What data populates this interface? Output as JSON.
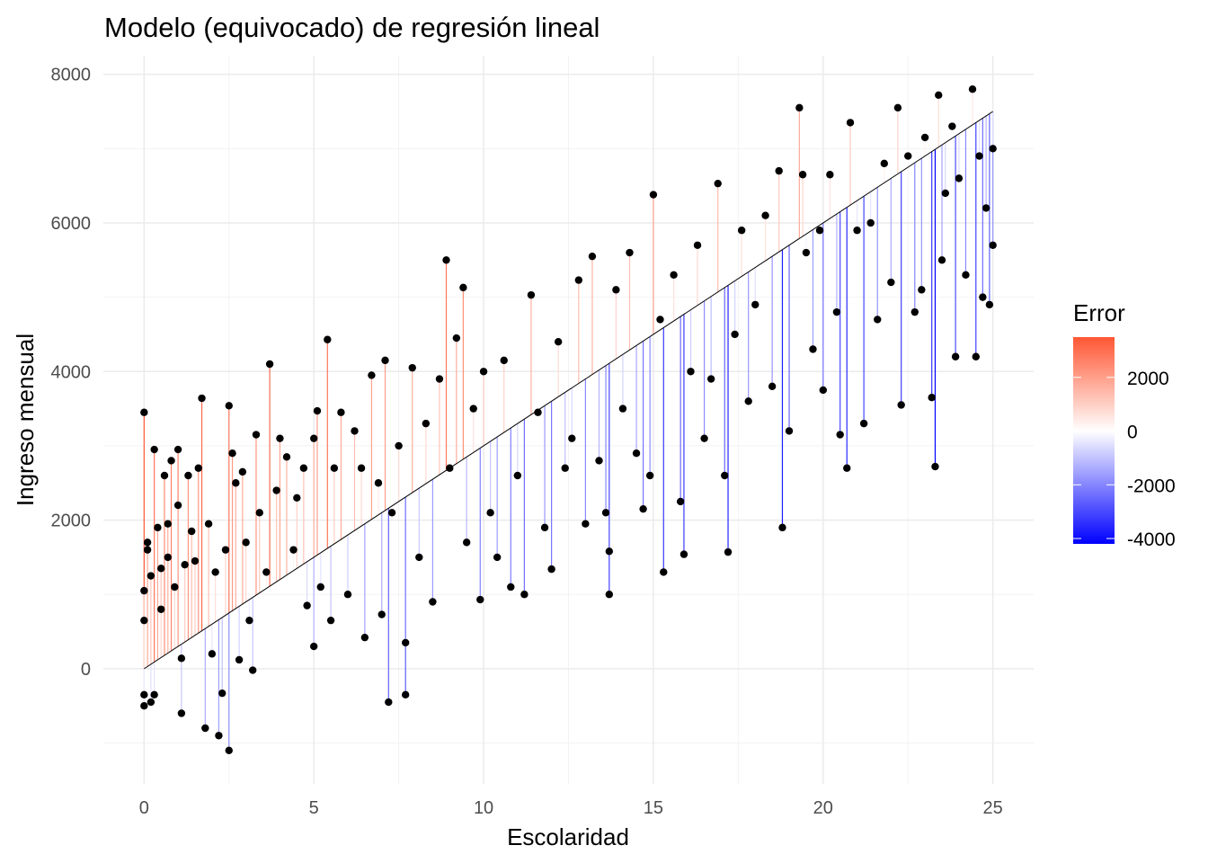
{
  "chart_data": {
    "type": "scatter",
    "title": "Modelo (equivocado) de regresión lineal",
    "xlabel": "Escolaridad",
    "ylabel": "Ingreso mensual",
    "xlim": [
      -1.2,
      26.2
    ],
    "ylim": [
      -1550,
      8250
    ],
    "x_ticks": [
      0,
      5,
      10,
      15,
      20,
      25
    ],
    "y_ticks": [
      0,
      2000,
      4000,
      6000,
      8000
    ],
    "grid": true,
    "fit_line": {
      "intercept": 0,
      "slope": 300,
      "x_range": [
        0,
        25
      ]
    },
    "legend": {
      "title": "Error",
      "placement": "right",
      "ticks": [
        2000,
        0,
        -2000,
        -4000
      ],
      "range": [
        -4200,
        3500
      ],
      "colors": {
        "low": "#0000FF",
        "mid": "#FFFFFF",
        "high": "#FF5733"
      }
    },
    "point_color": "#000000",
    "points": [
      [
        0,
        3450
      ],
      [
        0,
        1050
      ],
      [
        0,
        650
      ],
      [
        0,
        -500
      ],
      [
        0,
        -350
      ],
      [
        0.1,
        1700
      ],
      [
        0.1,
        1600
      ],
      [
        0.2,
        -450
      ],
      [
        0.2,
        1250
      ],
      [
        0.3,
        2950
      ],
      [
        0.3,
        -350
      ],
      [
        0.4,
        1900
      ],
      [
        0.5,
        1350
      ],
      [
        0.5,
        800
      ],
      [
        0.6,
        2600
      ],
      [
        0.7,
        1950
      ],
      [
        0.7,
        1500
      ],
      [
        0.8,
        2800
      ],
      [
        0.9,
        1100
      ],
      [
        1.0,
        2950
      ],
      [
        1.0,
        2200
      ],
      [
        1.1,
        140
      ],
      [
        1.1,
        -600
      ],
      [
        1.2,
        1400
      ],
      [
        1.3,
        2600
      ],
      [
        1.4,
        1850
      ],
      [
        1.5,
        1450
      ],
      [
        1.6,
        2700
      ],
      [
        1.7,
        3640
      ],
      [
        1.8,
        -800
      ],
      [
        1.9,
        1950
      ],
      [
        2.0,
        200
      ],
      [
        2.1,
        1300
      ],
      [
        2.2,
        -900
      ],
      [
        2.3,
        -330
      ],
      [
        2.4,
        1600
      ],
      [
        2.5,
        3540
      ],
      [
        2.5,
        -1100
      ],
      [
        2.6,
        2900
      ],
      [
        2.7,
        2500
      ],
      [
        2.8,
        120
      ],
      [
        2.9,
        2650
      ],
      [
        3.0,
        1700
      ],
      [
        3.1,
        650
      ],
      [
        3.2,
        -20
      ],
      [
        3.3,
        3150
      ],
      [
        3.4,
        2100
      ],
      [
        3.6,
        1300
      ],
      [
        3.7,
        4100
      ],
      [
        3.9,
        2400
      ],
      [
        4.0,
        3100
      ],
      [
        4.2,
        2850
      ],
      [
        4.4,
        1600
      ],
      [
        4.5,
        2300
      ],
      [
        4.7,
        2700
      ],
      [
        4.8,
        850
      ],
      [
        5.0,
        300
      ],
      [
        5.0,
        3100
      ],
      [
        5.1,
        3470
      ],
      [
        5.2,
        1100
      ],
      [
        5.4,
        4430
      ],
      [
        5.5,
        650
      ],
      [
        5.6,
        2700
      ],
      [
        5.8,
        3450
      ],
      [
        6.0,
        1000
      ],
      [
        6.2,
        3200
      ],
      [
        6.4,
        2700
      ],
      [
        6.5,
        420
      ],
      [
        6.7,
        3950
      ],
      [
        6.9,
        2500
      ],
      [
        7.0,
        730
      ],
      [
        7.1,
        4150
      ],
      [
        7.2,
        -450
      ],
      [
        7.3,
        2100
      ],
      [
        7.5,
        3000
      ],
      [
        7.7,
        -350
      ],
      [
        7.7,
        350
      ],
      [
        7.9,
        4050
      ],
      [
        8.1,
        1500
      ],
      [
        8.3,
        3300
      ],
      [
        8.5,
        900
      ],
      [
        8.7,
        3900
      ],
      [
        8.9,
        5500
      ],
      [
        9.0,
        2700
      ],
      [
        9.2,
        4450
      ],
      [
        9.4,
        5130
      ],
      [
        9.5,
        1700
      ],
      [
        9.7,
        3500
      ],
      [
        9.9,
        930
      ],
      [
        10.0,
        4000
      ],
      [
        10.2,
        2100
      ],
      [
        10.4,
        1500
      ],
      [
        10.6,
        4150
      ],
      [
        10.8,
        1100
      ],
      [
        11.0,
        2600
      ],
      [
        11.2,
        1000
      ],
      [
        11.4,
        5030
      ],
      [
        11.6,
        3450
      ],
      [
        11.8,
        1900
      ],
      [
        12.0,
        1340
      ],
      [
        12.2,
        4400
      ],
      [
        12.4,
        2700
      ],
      [
        12.6,
        3100
      ],
      [
        12.8,
        5230
      ],
      [
        13.0,
        1950
      ],
      [
        13.2,
        5550
      ],
      [
        13.4,
        2800
      ],
      [
        13.6,
        2100
      ],
      [
        13.7,
        1000
      ],
      [
        13.7,
        1580
      ],
      [
        13.9,
        5100
      ],
      [
        14.1,
        3500
      ],
      [
        14.3,
        5600
      ],
      [
        14.5,
        2900
      ],
      [
        14.7,
        2150
      ],
      [
        14.9,
        2600
      ],
      [
        15.0,
        6380
      ],
      [
        15.2,
        4700
      ],
      [
        15.3,
        1300
      ],
      [
        15.6,
        5300
      ],
      [
        15.8,
        2250
      ],
      [
        15.9,
        1540
      ],
      [
        16.1,
        4000
      ],
      [
        16.3,
        5700
      ],
      [
        16.5,
        3100
      ],
      [
        16.7,
        3900
      ],
      [
        16.9,
        6530
      ],
      [
        17.1,
        2600
      ],
      [
        17.2,
        1570
      ],
      [
        17.4,
        4500
      ],
      [
        17.6,
        5900
      ],
      [
        17.8,
        3600
      ],
      [
        18.0,
        4900
      ],
      [
        18.3,
        6100
      ],
      [
        18.5,
        3800
      ],
      [
        18.7,
        6700
      ],
      [
        18.8,
        1900
      ],
      [
        19.0,
        3200
      ],
      [
        19.3,
        7550
      ],
      [
        19.4,
        6650
      ],
      [
        19.5,
        5600
      ],
      [
        19.7,
        4300
      ],
      [
        19.9,
        5900
      ],
      [
        20.0,
        3750
      ],
      [
        20.2,
        6650
      ],
      [
        20.4,
        4800
      ],
      [
        20.5,
        3150
      ],
      [
        20.7,
        2700
      ],
      [
        20.8,
        7350
      ],
      [
        21.0,
        5900
      ],
      [
        21.2,
        3300
      ],
      [
        21.4,
        6000
      ],
      [
        21.6,
        4700
      ],
      [
        21.8,
        6800
      ],
      [
        22.0,
        5200
      ],
      [
        22.2,
        7550
      ],
      [
        22.3,
        3550
      ],
      [
        22.5,
        6900
      ],
      [
        22.7,
        4800
      ],
      [
        22.9,
        5100
      ],
      [
        23.0,
        7150
      ],
      [
        23.2,
        3650
      ],
      [
        23.3,
        2720
      ],
      [
        23.4,
        7720
      ],
      [
        23.5,
        5500
      ],
      [
        23.6,
        6400
      ],
      [
        23.8,
        7300
      ],
      [
        23.9,
        4200
      ],
      [
        24.0,
        6600
      ],
      [
        24.2,
        5300
      ],
      [
        24.4,
        7800
      ],
      [
        24.5,
        4200
      ],
      [
        24.6,
        6900
      ],
      [
        24.7,
        5000
      ],
      [
        24.8,
        6200
      ],
      [
        24.9,
        4900
      ],
      [
        25.0,
        5700
      ],
      [
        25.0,
        7000
      ]
    ]
  }
}
